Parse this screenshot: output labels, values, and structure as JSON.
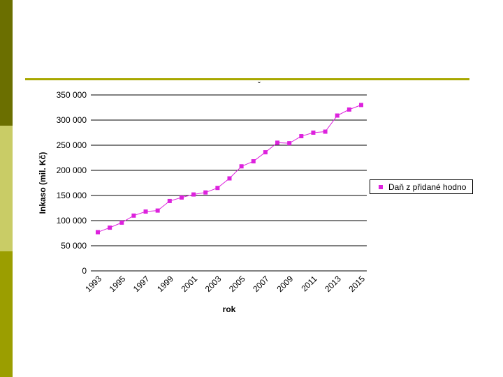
{
  "slide": {
    "accent_colors": [
      "#6b6f00",
      "#c9cc66",
      "#9b9e00"
    ],
    "rule_color": "#a8a800"
  },
  "chart_data": {
    "type": "line",
    "title": "ˇ",
    "xlabel": "rok",
    "ylabel": "Inkaso (mil. Kč)",
    "ylim": [
      0,
      350000
    ],
    "yticks": [
      0,
      50000,
      100000,
      150000,
      200000,
      250000,
      300000,
      350000
    ],
    "ytick_labels": [
      "0",
      "50 000",
      "100 000",
      "150 000",
      "200 000",
      "250 000",
      "300 000",
      "350 000"
    ],
    "xtick_labels": [
      "1993",
      "1995",
      "1997",
      "1999",
      "2001",
      "2003",
      "2005",
      "2007",
      "2009",
      "2011",
      "2013",
      "2015"
    ],
    "grid": true,
    "legend_position": "right",
    "series": [
      {
        "name": "Daň z přidané hodno",
        "color": "#dd22dd",
        "x": [
          1993,
          1994,
          1995,
          1996,
          1997,
          1998,
          1999,
          2000,
          2001,
          2002,
          2003,
          2004,
          2005,
          2006,
          2007,
          2008,
          2009,
          2010,
          2011,
          2012,
          2013,
          2014,
          2015
        ],
        "values": [
          77000,
          86000,
          96000,
          110000,
          118000,
          120000,
          139000,
          146000,
          152000,
          156000,
          165000,
          184000,
          208000,
          218000,
          236000,
          255000,
          254000,
          268000,
          275000,
          277000,
          309000,
          321000,
          330000
        ]
      }
    ]
  }
}
